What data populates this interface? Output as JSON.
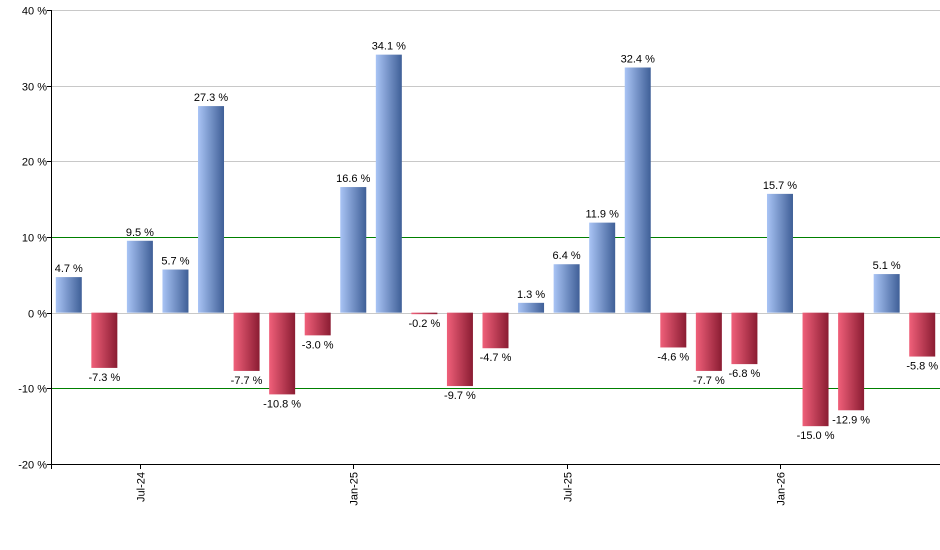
{
  "chart_data": {
    "type": "bar",
    "title": "",
    "xlabel": "",
    "ylabel": "",
    "ylim": [
      -20,
      40
    ],
    "y_ticks": [
      {
        "value": 40,
        "label": "40 %"
      },
      {
        "value": 30,
        "label": "30 %"
      },
      {
        "value": 20,
        "label": "20 %"
      },
      {
        "value": 10,
        "label": "10 %"
      },
      {
        "value": 0,
        "label": "0 %"
      },
      {
        "value": -10,
        "label": "-10 %"
      },
      {
        "value": -20,
        "label": "-20 %"
      }
    ],
    "x_ticks": [
      {
        "index": 2,
        "label": "Jul-24"
      },
      {
        "index": 8,
        "label": "Jan-25"
      },
      {
        "index": 14,
        "label": "Jul-25"
      },
      {
        "index": 20,
        "label": "Jan-26"
      }
    ],
    "values": [
      4.7,
      -7.3,
      9.5,
      5.7,
      27.3,
      -7.7,
      -10.8,
      -3.0,
      16.6,
      34.1,
      -0.2,
      -9.7,
      -4.7,
      1.3,
      6.4,
      11.9,
      32.4,
      -4.6,
      -7.7,
      -6.8,
      15.7,
      -15.0,
      -12.9,
      5.1,
      -5.8
    ],
    "labels": [
      "4.7 %",
      "-7.3 %",
      "9.5 %",
      "5.7 %",
      "27.3 %",
      "-7.7 %",
      "-10.8 %",
      "-3.0 %",
      "16.6 %",
      "34.1 %",
      "-0.2 %",
      "-9.7 %",
      "-4.7 %",
      "1.3 %",
      "6.4 %",
      "11.9 %",
      "32.4 %",
      "-4.6 %",
      "-7.7 %",
      "-6.8 %",
      "15.7 %",
      "-15.0 %",
      "-12.9 %",
      "5.1 %",
      "-5.8 %"
    ],
    "reference_lines": [
      10,
      -10
    ],
    "grid": true,
    "legend": false,
    "colors": {
      "positive_light": "#a9c4f5",
      "positive_dark": "#3f5f97",
      "negative_light": "#f0607a",
      "negative_dark": "#8a1c32",
      "grid": "#c8c8c8",
      "reference_line": "#008000",
      "axis": "#000000"
    }
  }
}
